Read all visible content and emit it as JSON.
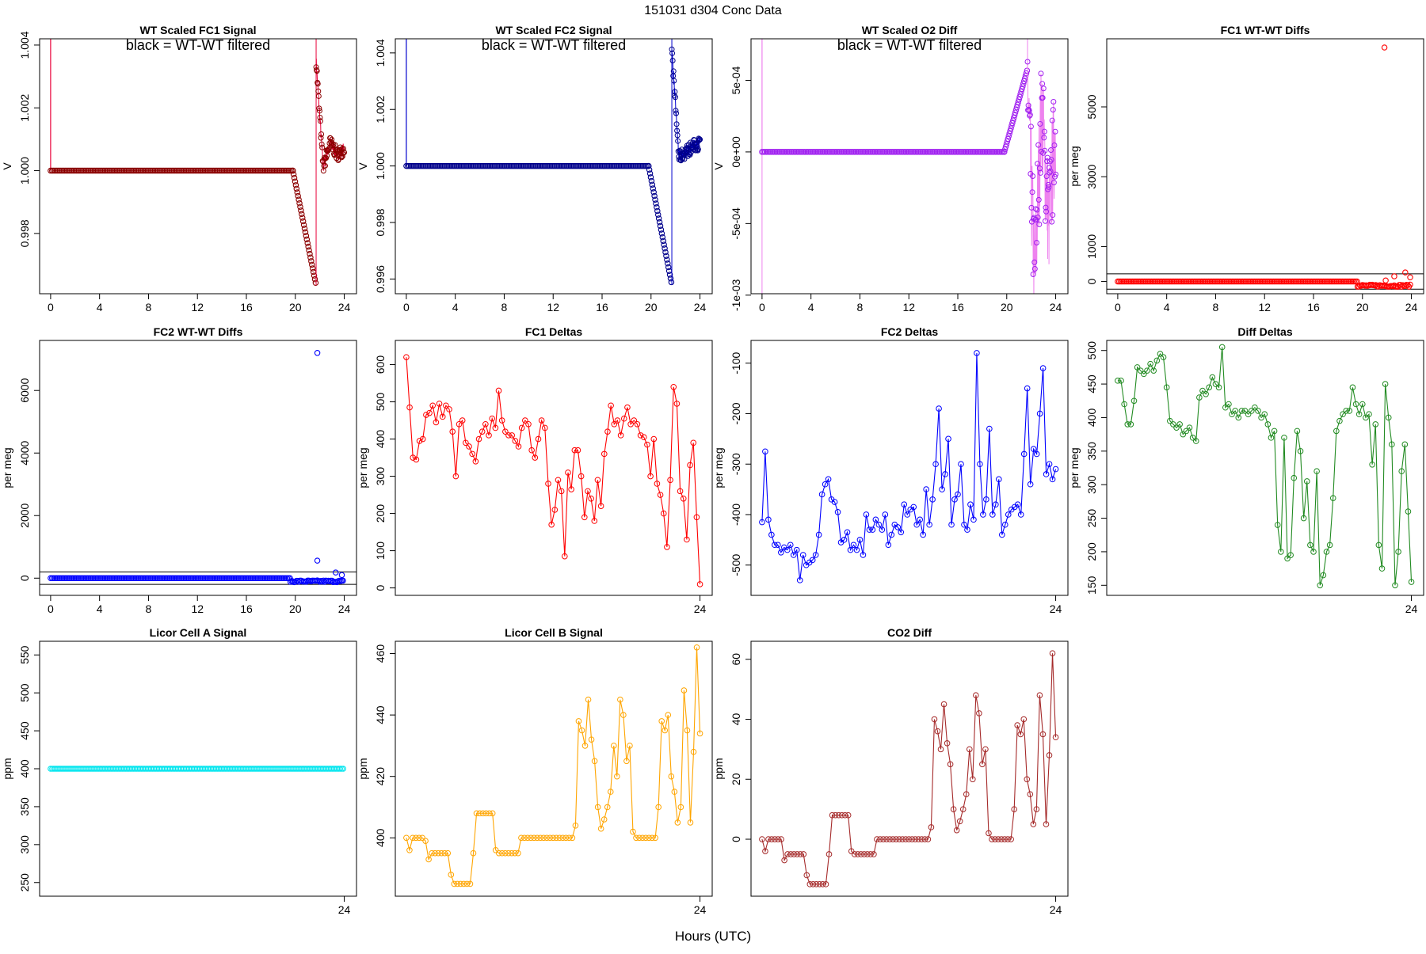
{
  "figure": {
    "title": "151031    d304    Conc Data",
    "xlabel": "Hours (UTC)",
    "annotation": "black = WT-WT filtered"
  },
  "chart_data": [
    {
      "type": "line",
      "style": "signal",
      "title": "WT Scaled FC1 Signal",
      "ylabel": "V",
      "color": "#e8003a",
      "point_color": "#8b0000",
      "xlim": [
        -0.9,
        25.0
      ],
      "ylim": [
        0.99608,
        1.0042
      ],
      "xticks": [
        0,
        4,
        8,
        12,
        16,
        20,
        24
      ],
      "yticks": [
        0.998,
        1.0,
        1.002,
        1.004
      ],
      "ytick_labels": [
        "0.998",
        "1.000",
        "1.002",
        "1.004"
      ],
      "annotation": true,
      "segments": [
        {
          "x0": 0,
          "x1": 19.8,
          "y": 1.0
        },
        {
          "x0": 19.8,
          "x1": 21.7,
          "y0": 1.0,
          "y1": 0.99635
        },
        {
          "x0": 21.7,
          "x1": 24,
          "noisy": [
            1.0035,
            1.0001,
            1.0009,
            1.0005,
            1.0007
          ]
        }
      ]
    },
    {
      "type": "line",
      "style": "signal",
      "title": "WT Scaled FC2 Signal",
      "ylabel": "V",
      "color": "#0000cd",
      "point_color": "#00008b",
      "xlim": [
        -0.9,
        25.0
      ],
      "ylim": [
        0.99548,
        1.0045
      ],
      "xticks": [
        0,
        4,
        8,
        12,
        16,
        20,
        24
      ],
      "yticks": [
        0.996,
        0.998,
        1.0,
        1.002,
        1.004
      ],
      "ytick_labels": [
        "0.996",
        "0.998",
        "1.000",
        "1.002",
        "1.004"
      ],
      "annotation": true,
      "segments": [
        {
          "x0": 0,
          "x1": 19.8,
          "y": 1.0
        },
        {
          "x0": 19.8,
          "x1": 21.7,
          "y0": 1.0,
          "y1": 0.9958
        },
        {
          "x0": 21.7,
          "x1": 24,
          "noisy": [
            1.0041,
            1.0003,
            1.0005,
            1.0007,
            1.0008
          ]
        }
      ]
    },
    {
      "type": "line",
      "style": "signal",
      "title": "WT Scaled O2 Diff",
      "ylabel": "V",
      "color": "#ee82ee",
      "point_color": "#a020f0",
      "xlim": [
        -0.9,
        25.0
      ],
      "ylim": [
        -0.00099,
        0.00079
      ],
      "xticks": [
        0,
        4,
        8,
        12,
        16,
        20,
        24
      ],
      "yticks": [
        -0.001,
        -0.0005,
        0.0,
        0.0005
      ],
      "ytick_labels": [
        "-1e-03",
        "-5e-04",
        "0e+00",
        "5e-04"
      ],
      "annotation": true,
      "segments": [
        {
          "x0": 0,
          "x1": 19.8,
          "y": 0.0
        },
        {
          "x0": 19.8,
          "x1": 21.7,
          "y0": 0.0,
          "y1": 0.00058
        },
        {
          "x0": 21.7,
          "x1": 24,
          "noisy": [
            0.0005,
            -0.0009,
            0.0003,
            -0.0005,
            0.0002
          ]
        }
      ]
    },
    {
      "type": "scatter",
      "style": "diffs",
      "title": "FC1 WT-WT Diffs",
      "ylabel": "per meg",
      "color": "#ff0000",
      "xlim": [
        -0.9,
        25.0
      ],
      "ylim": [
        -350,
        6950
      ],
      "xticks": [
        0,
        4,
        8,
        12,
        16,
        20,
        24
      ],
      "yticks": [
        0,
        1000,
        3000,
        5000
      ],
      "ytick_labels": [
        "0",
        "1000",
        "3000",
        "5000"
      ],
      "hlines": [
        220,
        -220
      ],
      "base": {
        "x0": 0,
        "x1": 19.6,
        "y": 0
      },
      "after": {
        "x0": 19.6,
        "x1": 24,
        "y": -120
      },
      "outliers": [
        [
          21.8,
          6700
        ],
        [
          21.9,
          30
        ],
        [
          22.6,
          150
        ],
        [
          23.5,
          260
        ],
        [
          23.9,
          120
        ]
      ]
    },
    {
      "type": "scatter",
      "style": "diffs",
      "title": "FC2 WT-WT Diffs",
      "ylabel": "per meg",
      "color": "#0000ff",
      "xlim": [
        -0.9,
        25.0
      ],
      "ylim": [
        -550,
        7600
      ],
      "xticks": [
        0,
        4,
        8,
        12,
        16,
        20,
        24
      ],
      "yticks": [
        0,
        2000,
        4000,
        6000
      ],
      "ytick_labels": [
        "0",
        "2000",
        "4000",
        "6000"
      ],
      "hlines": [
        200,
        -200
      ],
      "base": {
        "x0": 0,
        "x1": 19.6,
        "y": 0
      },
      "after": {
        "x0": 19.6,
        "x1": 24,
        "y": -100
      },
      "outliers": [
        [
          21.8,
          7200
        ],
        [
          21.8,
          560
        ],
        [
          23.3,
          180
        ],
        [
          23.8,
          100
        ]
      ]
    },
    {
      "type": "line",
      "style": "series",
      "title": "FC1 Deltas",
      "ylabel": "per meg",
      "color": "#ff0000",
      "xlim": [
        -0.9,
        25.0
      ],
      "ylim": [
        -20,
        665
      ],
      "xticks": [
        24
      ],
      "yticks": [
        0,
        100,
        200,
        300,
        400,
        500,
        600
      ],
      "ytick_labels": [
        "0",
        "100",
        "200",
        "300",
        "400",
        "500",
        "600"
      ],
      "values": [
        620,
        485,
        350,
        345,
        395,
        400,
        465,
        470,
        490,
        445,
        495,
        460,
        490,
        480,
        420,
        300,
        440,
        450,
        390,
        380,
        360,
        340,
        400,
        420,
        440,
        410,
        455,
        430,
        530,
        450,
        420,
        410,
        410,
        395,
        380,
        430,
        450,
        440,
        370,
        350,
        400,
        450,
        430,
        280,
        170,
        210,
        290,
        260,
        85,
        310,
        265,
        370,
        370,
        300,
        190,
        260,
        240,
        180,
        290,
        220,
        360,
        420,
        490,
        440,
        450,
        410,
        455,
        485,
        440,
        450,
        440,
        410,
        405,
        385,
        300,
        400,
        280,
        250,
        200,
        110,
        290,
        540,
        495,
        260,
        240,
        130,
        330,
        390,
        190,
        10
      ]
    },
    {
      "type": "line",
      "style": "series",
      "title": "FC2 Deltas",
      "ylabel": "per meg",
      "color": "#0000ff",
      "xlim": [
        -0.9,
        25.0
      ],
      "ylim": [
        -560,
        -55
      ],
      "xticks": [
        24
      ],
      "yticks": [
        -500,
        -400,
        -300,
        -200,
        -100
      ],
      "ytick_labels": [
        "-500",
        "-400",
        "-300",
        "-200",
        "-100"
      ],
      "values": [
        -415,
        -275,
        -410,
        -440,
        -460,
        -460,
        -475,
        -465,
        -470,
        -460,
        -480,
        -470,
        -530,
        -480,
        -500,
        -495,
        -490,
        -480,
        -440,
        -360,
        -340,
        -330,
        -370,
        -375,
        -395,
        -455,
        -450,
        -435,
        -470,
        -460,
        -470,
        -450,
        -480,
        -400,
        -430,
        -430,
        -410,
        -420,
        -430,
        -400,
        -460,
        -440,
        -420,
        -425,
        -435,
        -380,
        -400,
        -390,
        -385,
        -420,
        -410,
        -440,
        -350,
        -420,
        -370,
        -300,
        -190,
        -350,
        -320,
        -250,
        -420,
        -370,
        -360,
        -300,
        -420,
        -430,
        -380,
        -410,
        -80,
        -300,
        -400,
        -370,
        -230,
        -400,
        -380,
        -330,
        -440,
        -420,
        -400,
        -390,
        -385,
        -380,
        -400,
        -280,
        -150,
        -340,
        -270,
        -280,
        -200,
        -110,
        -320,
        -300,
        -330,
        -310
      ]
    },
    {
      "type": "line",
      "style": "series",
      "title": "Diff Deltas",
      "ylabel": "per meg",
      "color": "#228b22",
      "xlim": [
        -0.9,
        25.0
      ],
      "ylim": [
        135,
        515
      ],
      "xticks": [
        24
      ],
      "yticks": [
        150,
        200,
        250,
        300,
        350,
        400,
        450,
        500
      ],
      "ytick_labels": [
        "150",
        "200",
        "250",
        "300",
        "350",
        "400",
        "450",
        "500"
      ],
      "values": [
        455,
        455,
        420,
        390,
        390,
        425,
        475,
        470,
        465,
        470,
        480,
        470,
        485,
        495,
        490,
        445,
        395,
        390,
        385,
        390,
        375,
        380,
        385,
        370,
        365,
        430,
        440,
        435,
        445,
        460,
        450,
        445,
        505,
        415,
        420,
        405,
        410,
        400,
        410,
        410,
        405,
        410,
        415,
        410,
        400,
        405,
        390,
        370,
        380,
        240,
        200,
        370,
        190,
        195,
        310,
        380,
        350,
        250,
        305,
        210,
        200,
        320,
        150,
        165,
        200,
        210,
        280,
        380,
        395,
        405,
        410,
        410,
        445,
        420,
        405,
        420,
        400,
        405,
        330,
        390,
        210,
        175,
        450,
        400,
        360,
        150,
        200,
        320,
        360,
        260,
        155
      ]
    },
    {
      "type": "scatter",
      "style": "licor_a",
      "title": "Licor Cell A Signal",
      "ylabel": "ppm",
      "color": "#00e5ee",
      "xlim": [
        -0.9,
        25.0
      ],
      "ylim": [
        232,
        568
      ],
      "xticks": [
        24
      ],
      "yticks": [
        250,
        300,
        350,
        400,
        450,
        500,
        550
      ],
      "ytick_labels": [
        "250",
        "300",
        "350",
        "400",
        "450",
        "500",
        "550"
      ],
      "base": {
        "x0": 0,
        "x1": 24,
        "y": 400
      }
    },
    {
      "type": "line",
      "style": "series",
      "title": "Licor Cell B Signal",
      "ylabel": "ppm",
      "color": "#ffa500",
      "xlim": [
        -0.9,
        25.0
      ],
      "ylim": [
        381,
        464
      ],
      "xticks": [
        24
      ],
      "yticks": [
        400,
        420,
        440,
        460
      ],
      "ytick_labels": [
        "400",
        "420",
        "440",
        "460"
      ],
      "values": [
        400,
        396,
        400,
        400,
        400,
        400,
        399,
        393,
        395,
        395,
        395,
        395,
        395,
        395,
        388,
        385,
        385,
        385,
        385,
        385,
        385,
        395,
        408,
        408,
        408,
        408,
        408,
        408,
        396,
        395,
        395,
        395,
        395,
        395,
        395,
        395,
        400,
        400,
        400,
        400,
        400,
        400,
        400,
        400,
        400,
        400,
        400,
        400,
        400,
        400,
        400,
        400,
        400,
        404,
        438,
        435,
        430,
        445,
        432,
        425,
        410,
        403,
        406,
        410,
        415,
        430,
        420,
        445,
        440,
        425,
        430,
        402,
        400,
        400,
        400,
        400,
        400,
        400,
        400,
        410,
        438,
        435,
        440,
        420,
        415,
        405,
        410,
        448,
        435,
        405,
        428,
        462,
        434
      ]
    },
    {
      "type": "line",
      "style": "series",
      "title": "CO2 Diff",
      "ylabel": "ppm",
      "color": "#a52a2a",
      "xlim": [
        -0.9,
        25.0
      ],
      "ylim": [
        -19,
        66
      ],
      "xticks": [
        24
      ],
      "yticks": [
        0,
        20,
        40,
        60
      ],
      "ytick_labels": [
        "0",
        "20",
        "40",
        "60"
      ],
      "values": [
        0,
        -4,
        0,
        0,
        0,
        0,
        0,
        -7,
        -5,
        -5,
        -5,
        -5,
        -5,
        -5,
        -12,
        -15,
        -15,
        -15,
        -15,
        -15,
        -15,
        -5,
        8,
        8,
        8,
        8,
        8,
        8,
        -4,
        -5,
        -5,
        -5,
        -5,
        -5,
        -5,
        -5,
        0,
        0,
        0,
        0,
        0,
        0,
        0,
        0,
        0,
        0,
        0,
        0,
        0,
        0,
        0,
        0,
        0,
        4,
        40,
        36,
        30,
        45,
        32,
        25,
        10,
        3,
        6,
        10,
        15,
        30,
        20,
        48,
        42,
        25,
        30,
        2,
        0,
        0,
        0,
        0,
        0,
        0,
        0,
        10,
        38,
        35,
        40,
        20,
        15,
        5,
        10,
        48,
        35,
        5,
        28,
        62,
        34
      ]
    }
  ]
}
